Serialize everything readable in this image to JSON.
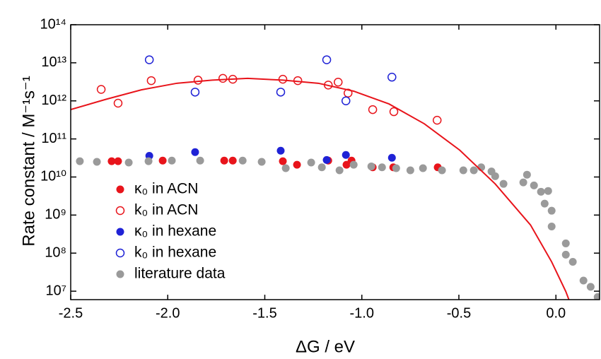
{
  "chart_data": {
    "type": "scatter",
    "xlabel": "ΔG / eV",
    "ylabel": "Rate constant / M⁻¹s⁻¹",
    "xlim": [
      -2.5,
      0.225
    ],
    "ylim": [
      6000000,
      100000000000000
    ],
    "ylog": true,
    "legend": "lower left",
    "xticks": [
      -2.5,
      {
        "value": -2,
        "label": "-2.0"
      },
      -1.5,
      {
        "value": -1,
        "label": "-1.0"
      },
      -0.5,
      {
        "value": 0,
        "label": "0.0"
      }
    ],
    "yticks": [
      {
        "value": 10000000,
        "label": "10⁷"
      },
      {
        "value": 100000000,
        "label": "10⁸"
      },
      {
        "value": 1000000000,
        "label": "10⁹"
      },
      {
        "value": 10000000000,
        "label": "10¹⁰"
      },
      {
        "value": 100000000000,
        "label": "10¹¹"
      },
      {
        "value": 1000000000000,
        "label": "10¹²"
      },
      {
        "value": 10000000000000,
        "label": "10¹³"
      },
      {
        "value": 100000000000000,
        "label": "10¹⁴"
      }
    ],
    "series": [
      {
        "name": "κ₀ in ACN",
        "color": "#e8141b",
        "filled": true,
        "x": [
          -2.289,
          -2.256,
          -2.026,
          -1.709,
          -1.665,
          -1.407,
          -1.334,
          -1.173,
          -1.079,
          -1.053,
          -0.944,
          -0.838,
          -0.609
        ],
        "values": [
          26000000000,
          26000000000,
          27000000000,
          27000000000,
          27000000000,
          26000000000,
          21000000000,
          27000000000,
          21000000000,
          27000000000,
          18000000000,
          18000000000,
          18000000000
        ]
      },
      {
        "name": "k₀ in ACN",
        "color": "#e8141b",
        "filled": false,
        "x": [
          -2.343,
          -2.256,
          -2.085,
          -1.844,
          -1.716,
          -1.665,
          -1.407,
          -1.33,
          -1.173,
          -1.122,
          -1.071,
          -0.944,
          -0.835,
          -0.612
        ],
        "values": [
          2000000000000,
          870000000000,
          3400000000000,
          3500000000000,
          3900000000000,
          3700000000000,
          3700000000000,
          3400000000000,
          2600000000000,
          3100000000000,
          1600000000000,
          590000000000,
          520000000000,
          310000000000
        ]
      },
      {
        "name": "κ₀ in hexane",
        "color": "#1f22d6",
        "filled": true,
        "x": [
          -2.095,
          -1.859,
          -1.418,
          -1.181,
          -1.082,
          -0.845
        ],
        "values": [
          36000000000,
          45000000000,
          49000000000,
          28000000000,
          38000000000,
          32000000000
        ]
      },
      {
        "name": "k₀ in hexane",
        "color": "#1f22d6",
        "filled": false,
        "x": [
          -2.095,
          -1.859,
          -1.418,
          -1.181,
          -1.082,
          -0.845
        ],
        "values": [
          12000000000000,
          1700000000000,
          1700000000000,
          12000000000000,
          1000000000000,
          4200000000000
        ]
      },
      {
        "name": "literature data",
        "color": "#9a9a9a",
        "filled": true,
        "x": [
          -2.453,
          -2.365,
          -2.201,
          -2.099,
          -1.979,
          -1.833,
          -1.614,
          -1.516,
          -1.392,
          -1.261,
          -1.206,
          -1.115,
          -1.042,
          -0.951,
          -0.896,
          -0.823,
          -0.75,
          -0.685,
          -0.587,
          -0.477,
          -0.423,
          -0.385,
          -0.332,
          -0.313,
          -0.27,
          -0.149,
          -0.168,
          -0.113,
          -0.077,
          -0.04,
          -0.058,
          -0.022,
          -0.022,
          0.051,
          0.051,
          0.087,
          0.142,
          0.179,
          0.215
        ],
        "values": [
          26000000000,
          25000000000,
          24000000000,
          26000000000,
          27000000000,
          27000000000,
          27000000000,
          25000000000,
          17000000000,
          24000000000,
          18000000000,
          15000000000,
          21000000000,
          19000000000,
          18000000000,
          17000000000,
          15000000000,
          17000000000,
          15000000000,
          15000000000,
          15000000000,
          18000000000,
          14000000000,
          10500000000,
          6600000000,
          11500000000,
          7200000000,
          6000000000,
          4100000000,
          4300000000,
          2000000000,
          1300000000,
          500000000,
          180000000,
          91000000,
          59000000,
          19000000,
          13000000,
          7000000
        ]
      },
      {
        "kind": "line",
        "color": "#e8141b",
        "x": [
          -2.5,
          -2.318,
          -2.136,
          -1.953,
          -1.771,
          -1.589,
          -1.407,
          -1.224,
          -1.042,
          -0.86,
          -0.678,
          -0.496,
          -0.313,
          -0.131,
          -0.022,
          0.051,
          0.08
        ],
        "values": [
          590000000000,
          1100000000000,
          1950000000000,
          2900000000000,
          3500000000000,
          3900000000000,
          3500000000000,
          2900000000000,
          1800000000000,
          830000000000,
          250000000000,
          51000000000,
          6600000000,
          550000000,
          59000000,
          9800000,
          4000000
        ]
      }
    ]
  }
}
